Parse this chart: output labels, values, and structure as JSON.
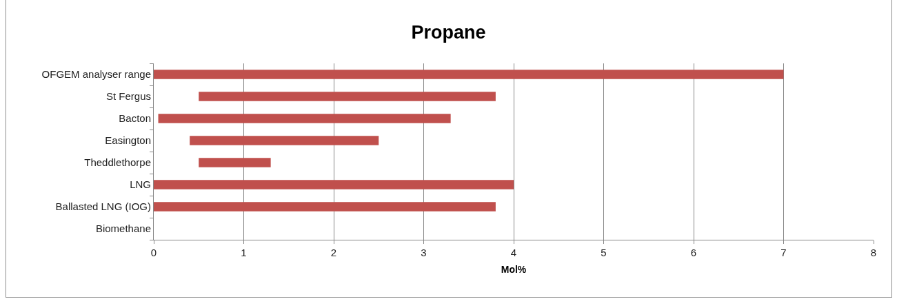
{
  "chart_data": {
    "type": "bar",
    "orientation": "horizontal",
    "title": "Propane",
    "xlabel": "Mol%",
    "categories": [
      "OFGEM analyser range",
      "St Fergus",
      "Bacton",
      "Easington",
      "Theddlethorpe",
      "LNG",
      "Ballasted LNG (IOG)",
      "Biomethane"
    ],
    "base": [
      0,
      0.5,
      0.05,
      0.4,
      0.5,
      0,
      0,
      null
    ],
    "values": [
      7,
      3.3,
      3.25,
      2.1,
      0.8,
      4,
      3.8,
      null
    ],
    "color": "#c0504d",
    "xlim": [
      0,
      8
    ],
    "xticks": [
      0,
      1,
      2,
      3,
      4,
      5,
      6,
      7,
      8
    ],
    "grid": "x"
  }
}
